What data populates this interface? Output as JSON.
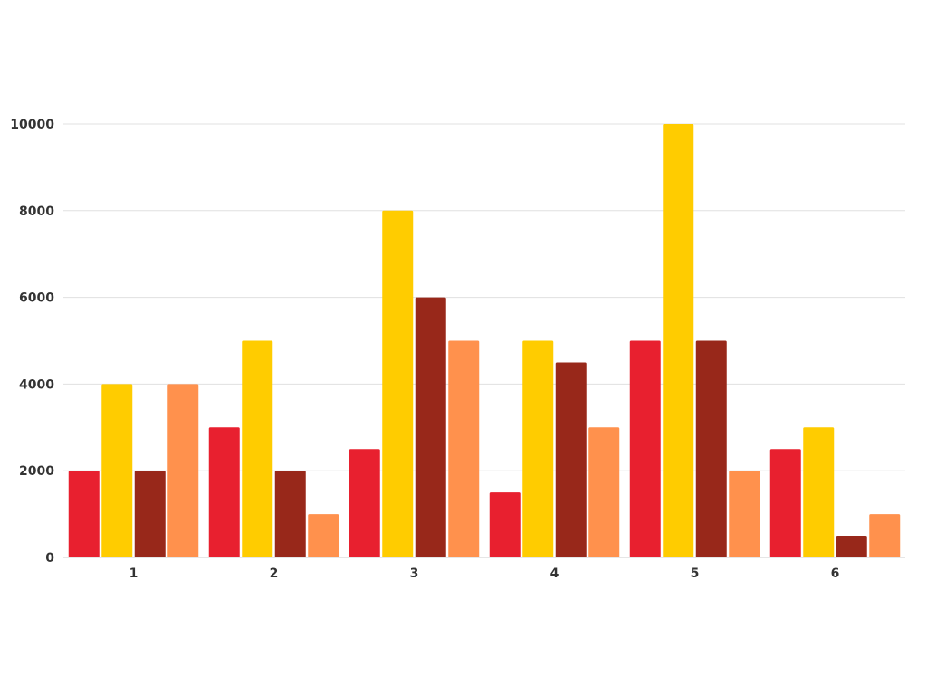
{
  "chart_data": {
    "type": "bar",
    "categories": [
      "1",
      "2",
      "3",
      "4",
      "5",
      "6"
    ],
    "series": [
      {
        "values": [
          2000,
          3000,
          2500,
          1500,
          5000,
          2500
        ],
        "color": "#e8202f"
      },
      {
        "values": [
          4000,
          5000,
          8000,
          5000,
          10000,
          3000
        ],
        "color": "#ffcc00"
      },
      {
        "values": [
          2000,
          2000,
          6000,
          4500,
          5000,
          500
        ],
        "color": "#98281a"
      },
      {
        "values": [
          4000,
          1000,
          5000,
          3000,
          2000,
          1000
        ],
        "color": "#ff914d"
      }
    ],
    "y_ticks": [
      "0",
      "2000",
      "4000",
      "6000",
      "8000",
      "10000"
    ],
    "ylim": [
      0,
      10000
    ],
    "grid": true,
    "legend": "none"
  }
}
